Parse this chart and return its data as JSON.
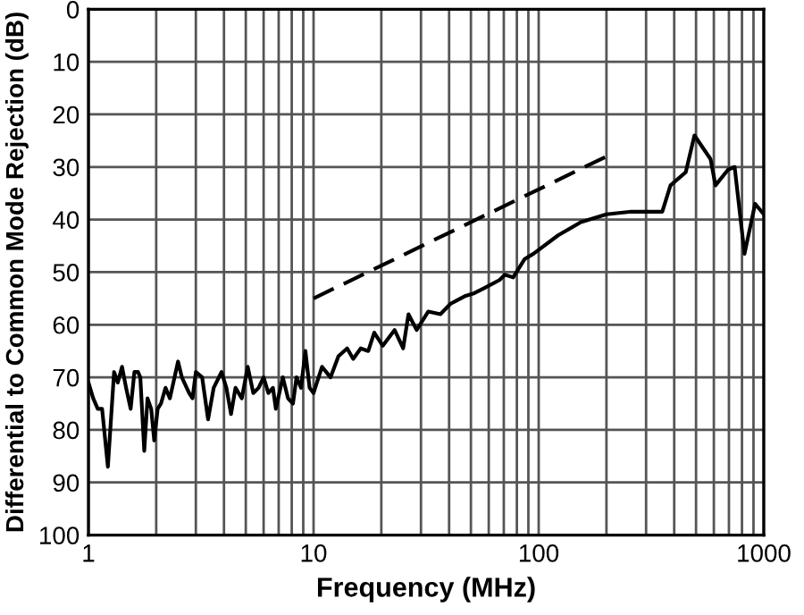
{
  "chart_data": {
    "type": "line",
    "xlabel": "Frequency (MHz)",
    "ylabel": "Differential to Common Mode Rejection (dB)",
    "log": "x",
    "xlim": [
      1,
      1000
    ],
    "ylim": [
      100,
      0
    ],
    "xticks": [
      1,
      10,
      100,
      1000
    ],
    "yticks": [
      0,
      10,
      20,
      30,
      40,
      50,
      60,
      70,
      80,
      90,
      100
    ],
    "grid": true,
    "marker": "none",
    "series": [
      {
        "color": "#000000",
        "line_style": "solid",
        "x": [
          1,
          1.05,
          1.1,
          1.15,
          1.22,
          1.3,
          1.35,
          1.41,
          1.47,
          1.54,
          1.6,
          1.66,
          1.7,
          1.77,
          1.83,
          1.9,
          1.96,
          2.03,
          2.1,
          2.2,
          2.3,
          2.5,
          2.6,
          2.8,
          2.9,
          3.0,
          3.2,
          3.4,
          3.6,
          3.9,
          4.1,
          4.3,
          4.5,
          4.8,
          5.1,
          5.4,
          5.7,
          6.0,
          6.3,
          6.6,
          6.8,
          7.3,
          7.7,
          8.1,
          8.4,
          8.8,
          9.2,
          9.6,
          10,
          10.9,
          11.9,
          12.9,
          14.1,
          15,
          16.2,
          17.5,
          18.6,
          20.3,
          22.9,
          25,
          26.4,
          28.7,
          32.3,
          36.6,
          40.6,
          47.4,
          51.8,
          57.5,
          67,
          70.7,
          77,
          86.7,
          94.8,
          122,
          154,
          200,
          258,
          354,
          385,
          450,
          492,
          580,
          610,
          694,
          742,
          821,
          915,
          1000
        ],
        "values": [
          71,
          74,
          76,
          76,
          87,
          69,
          71,
          68,
          72,
          76,
          69,
          69,
          70,
          84,
          74,
          76,
          82,
          76,
          75,
          72,
          74,
          67,
          70,
          73,
          74,
          69,
          70,
          78,
          72,
          69,
          72,
          77,
          72,
          74,
          68,
          73,
          72,
          70,
          73,
          72,
          76,
          70,
          74,
          75,
          70,
          72,
          65,
          72,
          73,
          68,
          70,
          66,
          64.5,
          66.5,
          64.5,
          65,
          61.5,
          64,
          61,
          64.5,
          58,
          61,
          57.5,
          58,
          56,
          54.5,
          54,
          53,
          51.5,
          50.5,
          51,
          47.5,
          46.5,
          43,
          40.5,
          39,
          38.5,
          38.5,
          33.5,
          31,
          24,
          28.5,
          33.5,
          30.5,
          30,
          46.5,
          37,
          39
        ]
      },
      {
        "type": "line",
        "color": "#000000",
        "line_style": "dashed",
        "x": [
          10,
          200
        ],
        "values": [
          55,
          28
        ]
      }
    ]
  }
}
